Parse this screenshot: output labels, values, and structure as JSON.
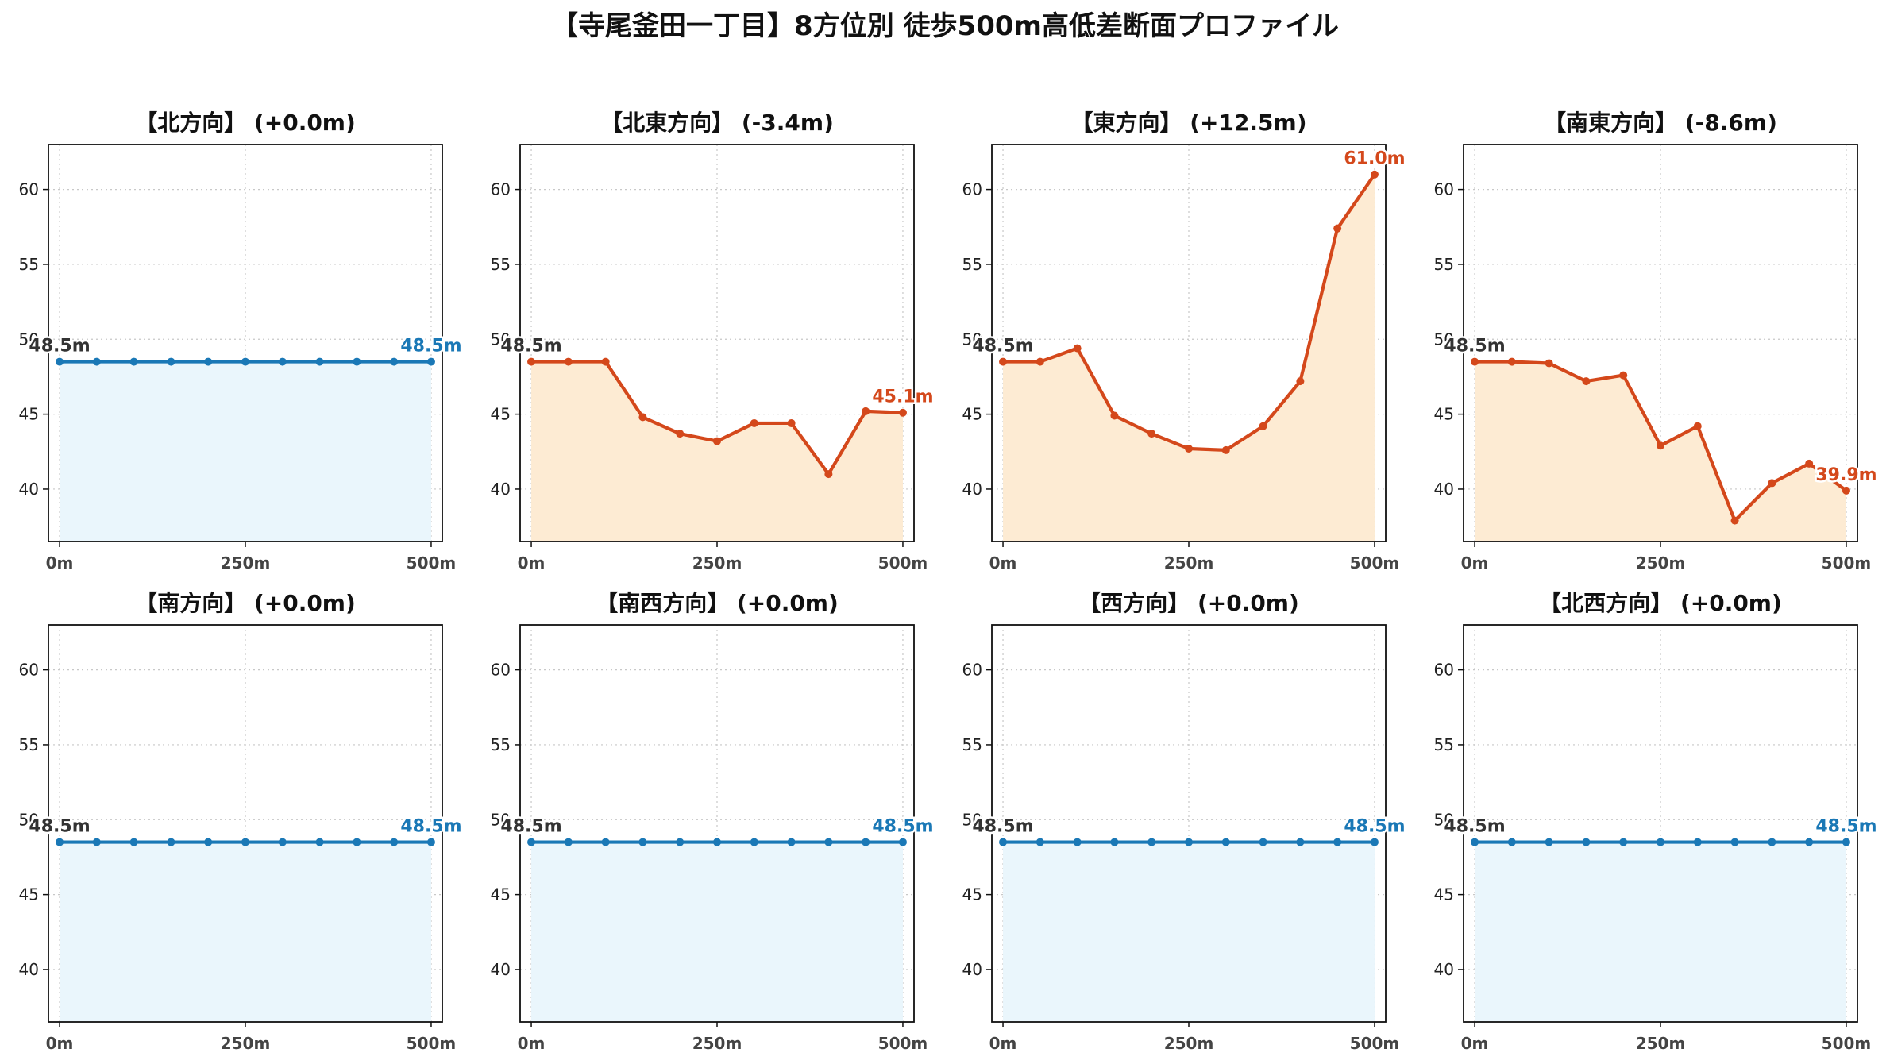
{
  "title": "【寺尾釜田一丁目】8方位別 徒歩500m高低差断面プロファイル",
  "colors": {
    "flat_line": "#1a78b6",
    "flat_fill": "#eaf6fc",
    "slope_line": "#d4481b",
    "slope_fill": "#fdebd3",
    "start_label": "#333333",
    "grid": "#c8c8c8"
  },
  "chart_data": [
    {
      "type": "area",
      "title": "【北方向】 (+0.0m)",
      "style": "flat",
      "x": [
        0,
        50,
        100,
        150,
        200,
        250,
        300,
        350,
        400,
        450,
        500
      ],
      "values": [
        48.5,
        48.5,
        48.5,
        48.5,
        48.5,
        48.5,
        48.5,
        48.5,
        48.5,
        48.5,
        48.5
      ],
      "start_label": "48.5m",
      "end_label": "48.5m",
      "xticks": [
        "0m",
        "250m",
        "500m"
      ],
      "yticks": [
        "40",
        "45",
        "50",
        "55",
        "60"
      ],
      "xlim": [
        -15,
        515
      ],
      "ylim": [
        36.5,
        63
      ],
      "grid": true
    },
    {
      "type": "area",
      "title": "【北東方向】 (-3.4m)",
      "style": "slope",
      "x": [
        0,
        50,
        100,
        150,
        200,
        250,
        300,
        350,
        400,
        450,
        500
      ],
      "values": [
        48.5,
        48.5,
        48.5,
        44.8,
        43.7,
        43.2,
        44.4,
        44.4,
        41.0,
        45.2,
        45.1
      ],
      "start_label": "48.5m",
      "end_label": "45.1m",
      "xticks": [
        "0m",
        "250m",
        "500m"
      ],
      "yticks": [
        "40",
        "45",
        "50",
        "55",
        "60"
      ],
      "xlim": [
        -15,
        515
      ],
      "ylim": [
        36.5,
        63
      ],
      "grid": true
    },
    {
      "type": "area",
      "title": "【東方向】 (+12.5m)",
      "style": "slope",
      "x": [
        0,
        50,
        100,
        150,
        200,
        250,
        300,
        350,
        400,
        450,
        500
      ],
      "values": [
        48.5,
        48.5,
        49.4,
        44.9,
        43.7,
        42.7,
        42.6,
        44.2,
        47.2,
        57.4,
        61.0
      ],
      "start_label": "48.5m",
      "end_label": "61.0m",
      "xticks": [
        "0m",
        "250m",
        "500m"
      ],
      "yticks": [
        "40",
        "45",
        "50",
        "55",
        "60"
      ],
      "xlim": [
        -15,
        515
      ],
      "ylim": [
        36.5,
        63
      ],
      "grid": true
    },
    {
      "type": "area",
      "title": "【南東方向】 (-8.6m)",
      "style": "slope",
      "x": [
        0,
        50,
        100,
        150,
        200,
        250,
        300,
        350,
        400,
        450,
        500
      ],
      "values": [
        48.5,
        48.5,
        48.4,
        47.2,
        47.6,
        42.9,
        44.2,
        37.9,
        40.4,
        41.7,
        39.9
      ],
      "start_label": "48.5m",
      "end_label": "39.9m",
      "xticks": [
        "0m",
        "250m",
        "500m"
      ],
      "yticks": [
        "40",
        "45",
        "50",
        "55",
        "60"
      ],
      "xlim": [
        -15,
        515
      ],
      "ylim": [
        36.5,
        63
      ],
      "grid": true
    },
    {
      "type": "area",
      "title": "【南方向】 (+0.0m)",
      "style": "flat",
      "x": [
        0,
        50,
        100,
        150,
        200,
        250,
        300,
        350,
        400,
        450,
        500
      ],
      "values": [
        48.5,
        48.5,
        48.5,
        48.5,
        48.5,
        48.5,
        48.5,
        48.5,
        48.5,
        48.5,
        48.5
      ],
      "start_label": "48.5m",
      "end_label": "48.5m",
      "xticks": [
        "0m",
        "250m",
        "500m"
      ],
      "yticks": [
        "40",
        "45",
        "50",
        "55",
        "60"
      ],
      "xlim": [
        -15,
        515
      ],
      "ylim": [
        36.5,
        63
      ],
      "grid": true
    },
    {
      "type": "area",
      "title": "【南西方向】 (+0.0m)",
      "style": "flat",
      "x": [
        0,
        50,
        100,
        150,
        200,
        250,
        300,
        350,
        400,
        450,
        500
      ],
      "values": [
        48.5,
        48.5,
        48.5,
        48.5,
        48.5,
        48.5,
        48.5,
        48.5,
        48.5,
        48.5,
        48.5
      ],
      "start_label": "48.5m",
      "end_label": "48.5m",
      "xticks": [
        "0m",
        "250m",
        "500m"
      ],
      "yticks": [
        "40",
        "45",
        "50",
        "55",
        "60"
      ],
      "xlim": [
        -15,
        515
      ],
      "ylim": [
        36.5,
        63
      ],
      "grid": true
    },
    {
      "type": "area",
      "title": "【西方向】 (+0.0m)",
      "style": "flat",
      "x": [
        0,
        50,
        100,
        150,
        200,
        250,
        300,
        350,
        400,
        450,
        500
      ],
      "values": [
        48.5,
        48.5,
        48.5,
        48.5,
        48.5,
        48.5,
        48.5,
        48.5,
        48.5,
        48.5,
        48.5
      ],
      "start_label": "48.5m",
      "end_label": "48.5m",
      "xticks": [
        "0m",
        "250m",
        "500m"
      ],
      "yticks": [
        "40",
        "45",
        "50",
        "55",
        "60"
      ],
      "xlim": [
        -15,
        515
      ],
      "ylim": [
        36.5,
        63
      ],
      "grid": true
    },
    {
      "type": "area",
      "title": "【北西方向】 (+0.0m)",
      "style": "flat",
      "x": [
        0,
        50,
        100,
        150,
        200,
        250,
        300,
        350,
        400,
        450,
        500
      ],
      "values": [
        48.5,
        48.5,
        48.5,
        48.5,
        48.5,
        48.5,
        48.5,
        48.5,
        48.5,
        48.5,
        48.5
      ],
      "start_label": "48.5m",
      "end_label": "48.5m",
      "xticks": [
        "0m",
        "250m",
        "500m"
      ],
      "yticks": [
        "40",
        "45",
        "50",
        "55",
        "60"
      ],
      "xlim": [
        -15,
        515
      ],
      "ylim": [
        36.5,
        63
      ],
      "grid": true
    }
  ]
}
